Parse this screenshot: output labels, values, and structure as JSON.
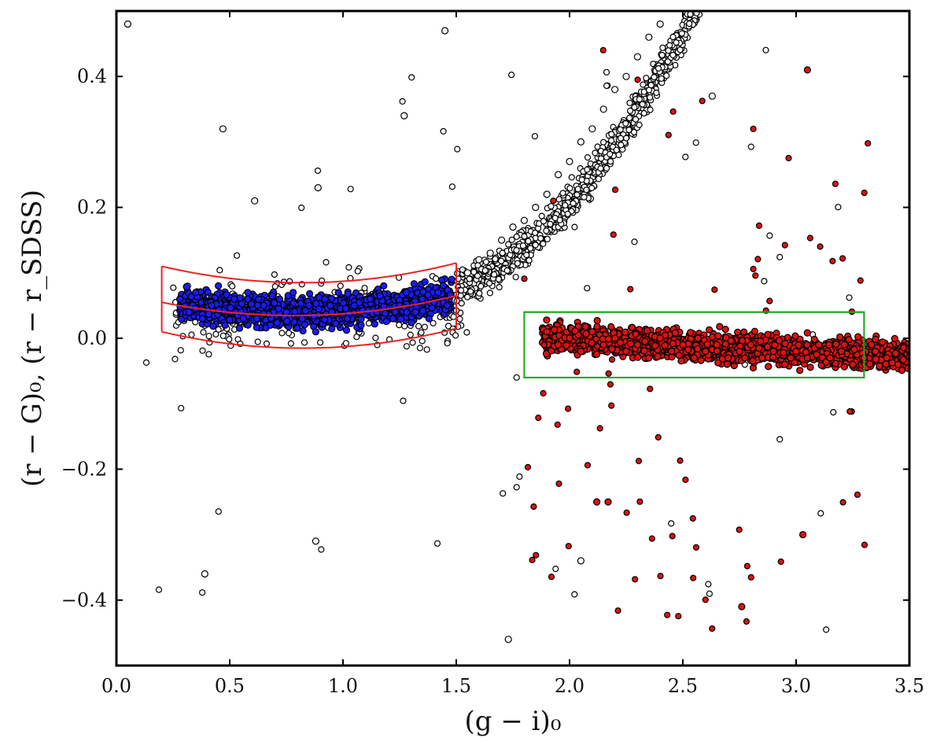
{
  "chart_data": {
    "type": "scatter",
    "title": "",
    "xlabel": "(g − i)₀",
    "ylabel": "(r − G)₀, (r − r_SDSS)",
    "xlim": [
      0.0,
      3.5
    ],
    "ylim": [
      -0.5,
      0.5
    ],
    "x_ticks": [
      "0.0",
      "0.5",
      "1.0",
      "1.5",
      "2.0",
      "2.5",
      "3.0",
      "3.5"
    ],
    "y_ticks": [
      "−0.4",
      "−0.2",
      "0.0",
      "0.2",
      "0.4"
    ],
    "x_tick_values": [
      0.0,
      0.5,
      1.0,
      1.5,
      2.0,
      2.5,
      3.0,
      3.5
    ],
    "y_tick_values": [
      -0.4,
      -0.2,
      0.0,
      0.2,
      0.4
    ],
    "grid": false,
    "series": [
      {
        "color": "#1a1aff",
        "description_points": "dense blue band of selected stars, x 0.25–1.5, y ≈ 0.0–0.1",
        "points": [
          [
            0.28,
            0.06
          ],
          [
            0.32,
            0.04
          ],
          [
            0.35,
            0.07
          ],
          [
            0.38,
            0.03
          ],
          [
            0.42,
            0.05
          ],
          [
            0.45,
            0.08
          ],
          [
            0.48,
            0.02
          ],
          [
            0.52,
            0.06
          ],
          [
            0.55,
            0.04
          ],
          [
            0.58,
            0.07
          ],
          [
            0.62,
            0.03
          ],
          [
            0.65,
            0.05
          ],
          [
            0.68,
            0.02
          ],
          [
            0.72,
            0.06
          ],
          [
            0.75,
            0.04
          ],
          [
            0.78,
            0.07
          ],
          [
            0.82,
            0.03
          ],
          [
            0.85,
            0.05
          ],
          [
            0.88,
            0.01
          ],
          [
            0.92,
            0.06
          ],
          [
            0.95,
            0.04
          ],
          [
            0.98,
            0.07
          ],
          [
            1.02,
            0.03
          ],
          [
            1.05,
            0.05
          ],
          [
            1.08,
            0.02
          ],
          [
            1.12,
            0.06
          ],
          [
            1.15,
            0.04
          ],
          [
            1.18,
            0.08
          ],
          [
            1.22,
            0.03
          ],
          [
            1.25,
            0.05
          ],
          [
            1.28,
            0.07
          ],
          [
            1.32,
            0.04
          ],
          [
            1.35,
            0.06
          ],
          [
            1.38,
            0.03
          ],
          [
            1.42,
            0.07
          ],
          [
            1.46,
            0.05
          ],
          [
            1.48,
            0.09
          ]
        ]
      },
      {
        "color": "#dd1111",
        "description_points": "dense red band, x 1.85–3.5, y ≈ −0.06–0.04, plus scattered outliers",
        "points": [
          [
            1.9,
            0.01
          ],
          [
            1.95,
            -0.01
          ],
          [
            2.0,
            0.0
          ],
          [
            2.05,
            -0.02
          ],
          [
            2.1,
            0.01
          ],
          [
            2.15,
            -0.01
          ],
          [
            2.2,
            0.0
          ],
          [
            2.25,
            -0.02
          ],
          [
            2.3,
            -0.01
          ],
          [
            2.35,
            -0.03
          ],
          [
            2.4,
            0.0
          ],
          [
            2.45,
            -0.02
          ],
          [
            2.5,
            -0.01
          ],
          [
            2.55,
            -0.03
          ],
          [
            2.6,
            -0.02
          ],
          [
            2.65,
            -0.01
          ],
          [
            2.7,
            -0.03
          ],
          [
            2.75,
            -0.02
          ],
          [
            2.8,
            -0.01
          ],
          [
            2.85,
            -0.03
          ],
          [
            2.9,
            -0.02
          ],
          [
            2.95,
            -0.04
          ],
          [
            3.0,
            -0.02
          ],
          [
            3.05,
            -0.03
          ],
          [
            3.1,
            -0.01
          ],
          [
            3.15,
            -0.03
          ],
          [
            3.2,
            -0.02
          ],
          [
            3.25,
            -0.04
          ],
          [
            3.3,
            -0.03
          ],
          [
            3.35,
            -0.02
          ],
          [
            3.4,
            -0.03
          ],
          [
            3.45,
            -0.04
          ],
          [
            3.05,
            0.41
          ],
          [
            2.12,
            -0.25
          ],
          [
            2.17,
            -0.25
          ],
          [
            2.76,
            -0.41
          ],
          [
            3.03,
            -0.3
          ]
        ]
      },
      {
        "color": "#ffffff",
        "description_points": "white open circles: giant branch rising from x 1.5 to 2.5 and sparse scatter",
        "points": [
          [
            1.55,
            0.1
          ],
          [
            1.6,
            0.12
          ],
          [
            1.65,
            0.13
          ],
          [
            1.7,
            0.15
          ],
          [
            1.75,
            0.17
          ],
          [
            1.8,
            0.18
          ],
          [
            1.85,
            0.2
          ],
          [
            1.9,
            0.22
          ],
          [
            1.95,
            0.25
          ],
          [
            2.0,
            0.27
          ],
          [
            2.05,
            0.3
          ],
          [
            2.1,
            0.32
          ],
          [
            2.15,
            0.35
          ],
          [
            2.2,
            0.38
          ],
          [
            2.25,
            0.4
          ],
          [
            2.3,
            0.43
          ],
          [
            2.35,
            0.46
          ],
          [
            2.4,
            0.48
          ],
          [
            0.05,
            0.48
          ],
          [
            1.45,
            0.47
          ],
          [
            0.47,
            0.32
          ],
          [
            0.39,
            -0.36
          ],
          [
            1.73,
            -0.46
          ],
          [
            0.88,
            -0.31
          ],
          [
            2.05,
            -0.34
          ],
          [
            0.61,
            0.21
          ],
          [
            0.89,
            0.23
          ],
          [
            1.27,
            0.34
          ],
          [
            2.63,
            0.37
          ]
        ]
      }
    ],
    "overlays": [
      {
        "type": "curved-band",
        "color": "#ee2222",
        "x_range": [
          0.2,
          1.5
        ],
        "centerline_y": [
          0.055,
          0.035,
          0.065
        ],
        "upper_y": [
          0.11,
          0.085,
          0.115
        ],
        "lower_y": [
          0.01,
          -0.015,
          0.015
        ]
      },
      {
        "type": "rectangle",
        "color": "#22aa22",
        "x_range": [
          1.8,
          3.3
        ],
        "y_range": [
          -0.06,
          0.04
        ]
      }
    ]
  }
}
